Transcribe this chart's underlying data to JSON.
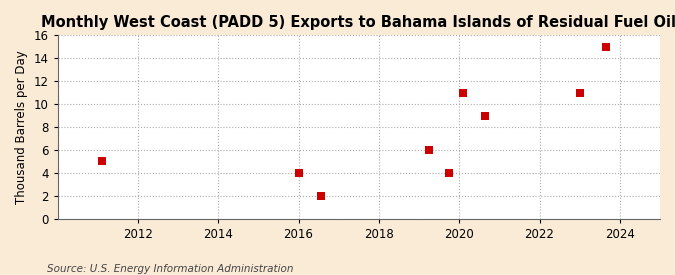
{
  "title": "Monthly West Coast (PADD 5) Exports to Bahama Islands of Residual Fuel Oil",
  "ylabel": "Thousand Barrels per Day",
  "source": "Source: U.S. Energy Information Administration",
  "background_color": "#faebd7",
  "plot_bg_color": "#ffffff",
  "grid_color": "#aaaaaa",
  "scatter_color": "#cc0000",
  "data_x": [
    2011.1,
    2016.0,
    2016.55,
    2019.25,
    2019.75,
    2020.1,
    2020.65,
    2023.0,
    2023.65
  ],
  "data_y": [
    5,
    4,
    2,
    6,
    4,
    11,
    9,
    11,
    15
  ],
  "xlim": [
    2010,
    2025
  ],
  "ylim": [
    0,
    16
  ],
  "xticks": [
    2012,
    2014,
    2016,
    2018,
    2020,
    2022,
    2024
  ],
  "yticks": [
    0,
    2,
    4,
    6,
    8,
    10,
    12,
    14,
    16
  ],
  "title_fontsize": 10.5,
  "label_fontsize": 8.5,
  "tick_fontsize": 8.5,
  "source_fontsize": 7.5,
  "marker_size": 28
}
